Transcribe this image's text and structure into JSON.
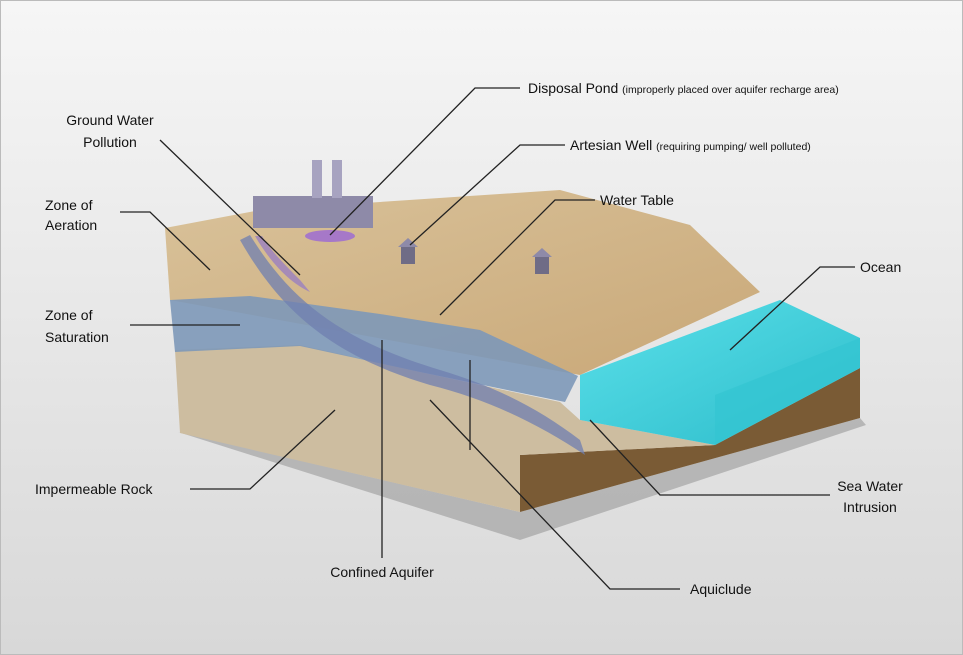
{
  "labels": {
    "disposal_pond": {
      "text": "Disposal Pond",
      "note": "(improperly placed over aquifer recharge area)"
    },
    "artesian_well": {
      "text": "Artesian Well",
      "note": "(requiring pumping/ well polluted)"
    },
    "water_table": {
      "text": "Water Table"
    },
    "ocean": {
      "text": "Ocean"
    },
    "ground_water_pollution": {
      "lines": [
        "Ground Water",
        "Pollution"
      ]
    },
    "zone_of_aeration": {
      "lines": [
        "Zone of",
        "Aeration"
      ]
    },
    "zone_of_saturation": {
      "lines": [
        "Zone of",
        "Saturation"
      ]
    },
    "impermeable_rock": {
      "text": "Impermeable Rock"
    },
    "confined_aquifer": {
      "text": "Confined Aquifer"
    },
    "aquiclude": {
      "text": "Aquiclude"
    },
    "sea_water_intrusion": {
      "lines": [
        "Sea Water",
        "Intrusion"
      ]
    }
  }
}
